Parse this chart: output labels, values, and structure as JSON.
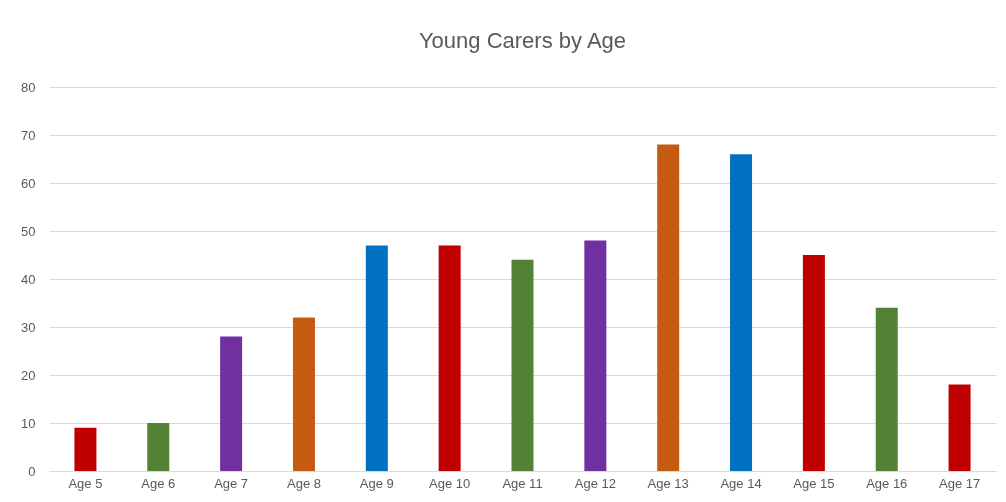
{
  "chart_data": {
    "type": "bar",
    "title": "Young Carers by Age",
    "categories": [
      "Age 5",
      "Age 6",
      "Age 7",
      "Age 8",
      "Age 9",
      "Age 10",
      "Age 11",
      "Age 12",
      "Age 13",
      "Age 14",
      "Age 15",
      "Age 16",
      "Age 17"
    ],
    "values": [
      9,
      10,
      28,
      32,
      47,
      47,
      44,
      48,
      68,
      66,
      45,
      34,
      18
    ],
    "colors": [
      "#c00000",
      "#548235",
      "#7030a0",
      "#c55a11",
      "#0070c0",
      "#c00000",
      "#548235",
      "#7030a0",
      "#c55a11",
      "#0070c0",
      "#c00000",
      "#548235",
      "#c00000"
    ],
    "ylim": [
      0,
      80
    ],
    "yticks": [
      0,
      10,
      20,
      30,
      40,
      50,
      60,
      70,
      80
    ],
    "grid": "y"
  }
}
